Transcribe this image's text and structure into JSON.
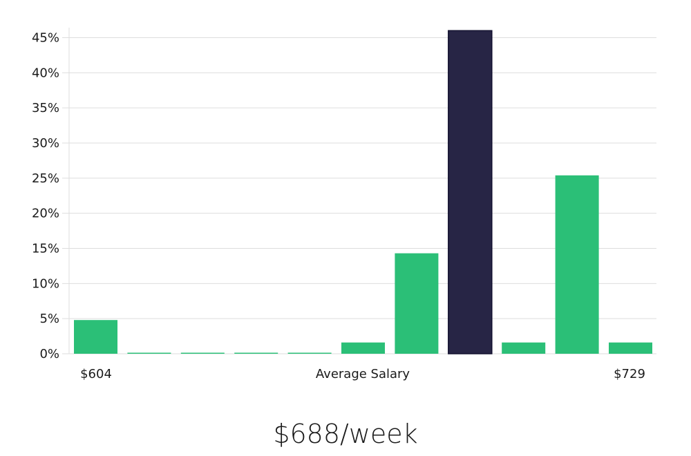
{
  "chart_data": {
    "type": "bar",
    "values": [
      4.8,
      0.1,
      0.1,
      0.1,
      0.1,
      1.6,
      14.3,
      46.0,
      1.6,
      25.4,
      1.6
    ],
    "highlight_index": 7,
    "ylim": [
      0,
      48
    ],
    "yticks": [
      0,
      5,
      10,
      15,
      20,
      25,
      30,
      35,
      40,
      45
    ],
    "ytick_format": "%",
    "x_min_label": "$604",
    "x_center_label": "Average Salary",
    "x_max_label": "$729",
    "grid": true,
    "colors": {
      "bar": "#2bbf77",
      "highlight": "#272545",
      "grid": "#dddddd"
    }
  },
  "summary": {
    "value": "$688/week"
  }
}
